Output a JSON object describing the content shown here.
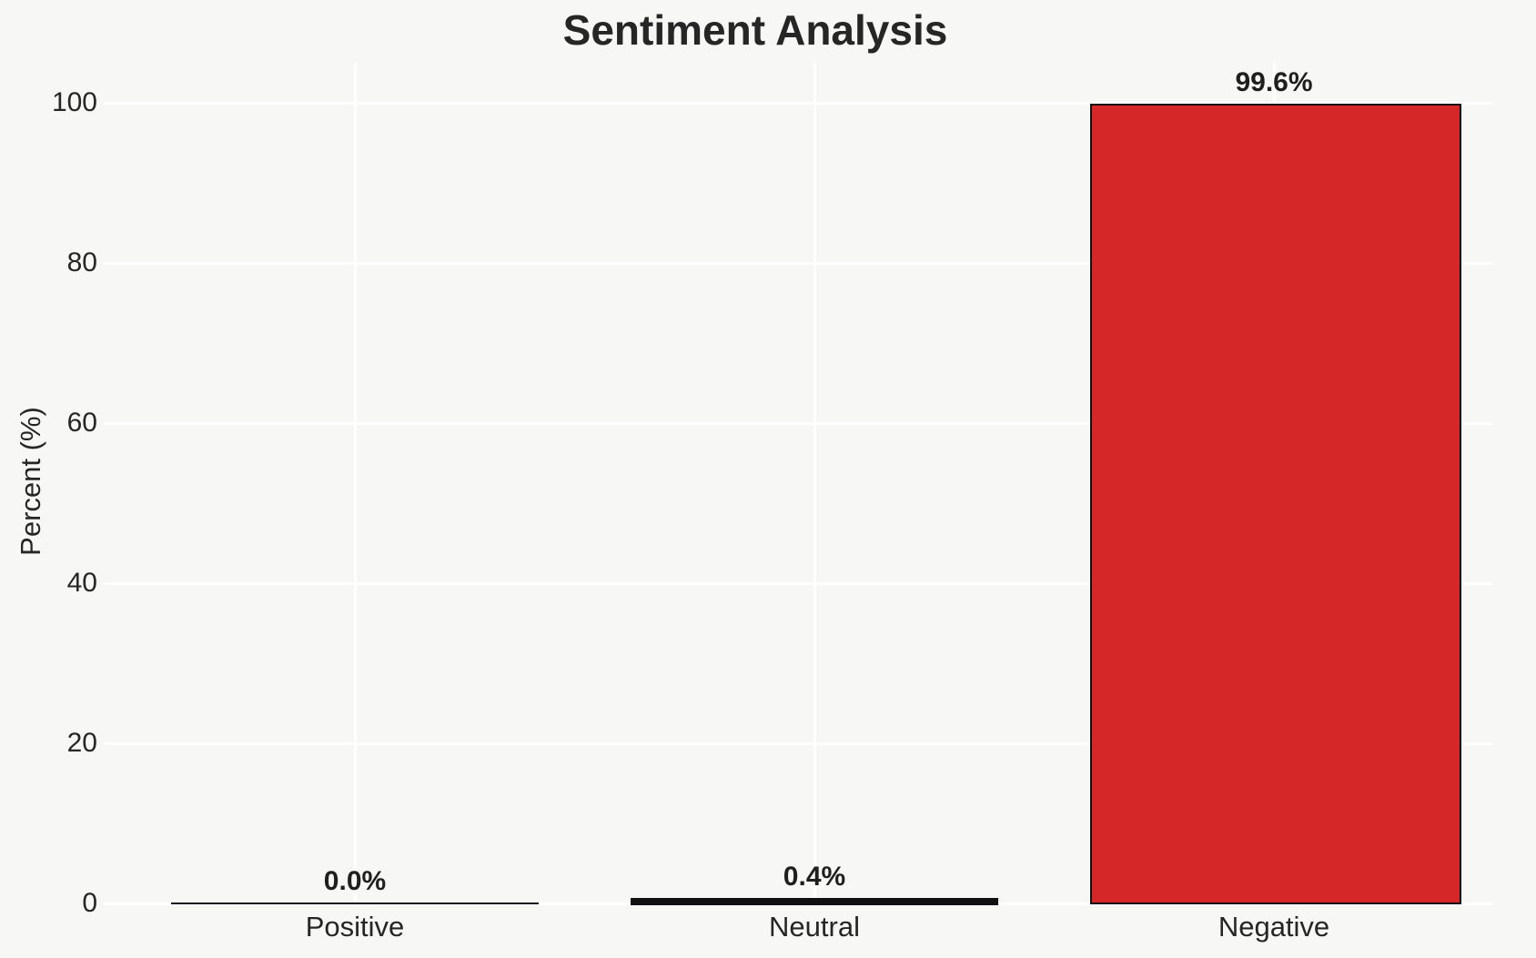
{
  "chart_data": {
    "type": "bar",
    "title": "Sentiment Analysis",
    "categories": [
      "Positive",
      "Neutral",
      "Negative"
    ],
    "values": [
      0.0,
      0.4,
      99.6
    ],
    "value_labels": [
      "0.0%",
      "0.4%",
      "99.6%"
    ],
    "xlabel": "",
    "ylabel": "Percent (%)",
    "ylim": [
      0,
      105
    ],
    "yticks": [
      0,
      20,
      40,
      60,
      80,
      100
    ],
    "ytick_labels": [
      "0",
      "20",
      "40",
      "60",
      "80",
      "100"
    ],
    "grid": true,
    "legend_position": "none",
    "colors": {
      "background": "#f7f7f5",
      "grid": "#ffffff",
      "bar_edge": "#111111",
      "text": "#262626",
      "value_label_text": "#1f1f1f"
    },
    "bar_fill_colors": [
      "none",
      "none",
      "#d62728"
    ]
  }
}
